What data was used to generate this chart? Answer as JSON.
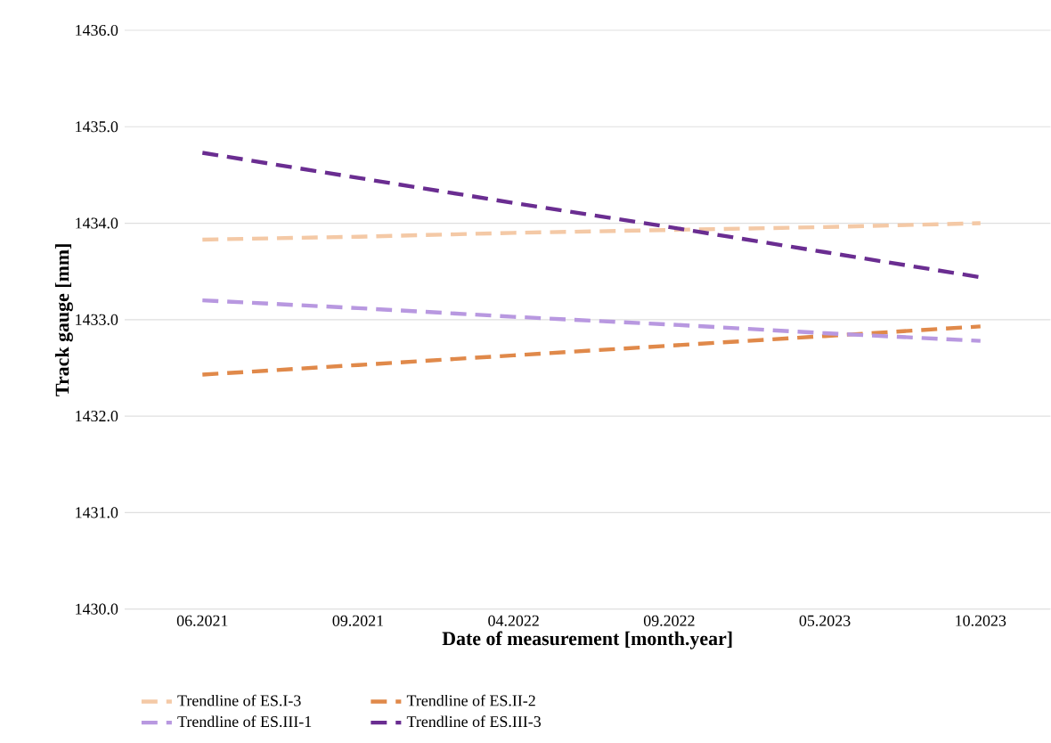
{
  "chart_data": {
    "type": "line",
    "xlabel": "Date of measurement [month.year]",
    "ylabel": "Track gauge [mm]",
    "categories": [
      "06.2021",
      "09.2021",
      "04.2022",
      "09.2022",
      "05.2023",
      "10.2023"
    ],
    "series": [
      {
        "name": "Trendline of ES.I-3",
        "color": "#f4c9a6",
        "values": [
          1433.83,
          1433.86,
          1433.9,
          1433.93,
          1433.96,
          1434.0
        ]
      },
      {
        "name": "Trendline of ES.II-2",
        "color": "#e0894a",
        "values": [
          1432.43,
          1432.53,
          1432.63,
          1432.73,
          1432.83,
          1432.93
        ]
      },
      {
        "name": "Trendline of ES.III-1",
        "color": "#b898e0",
        "values": [
          1433.2,
          1433.12,
          1433.03,
          1432.95,
          1432.86,
          1432.78
        ]
      },
      {
        "name": "Trendline of ES.III-3",
        "color": "#6a2d91",
        "values": [
          1434.73,
          1434.47,
          1434.21,
          1433.96,
          1433.7,
          1433.44
        ]
      }
    ],
    "ylim": [
      1430,
      1436
    ],
    "yticks": [
      {
        "value": 1430,
        "label": "1430.0"
      },
      {
        "value": 1431,
        "label": "1431.0"
      },
      {
        "value": 1432,
        "label": "1432.0"
      },
      {
        "value": 1433,
        "label": "1433.0"
      },
      {
        "value": 1434,
        "label": "1434.0"
      },
      {
        "value": 1435,
        "label": "1435.0"
      },
      {
        "value": 1436,
        "label": "1436.0"
      }
    ],
    "grid": "y",
    "legend": "bottom",
    "marker": "none",
    "line_style": "dashed"
  }
}
